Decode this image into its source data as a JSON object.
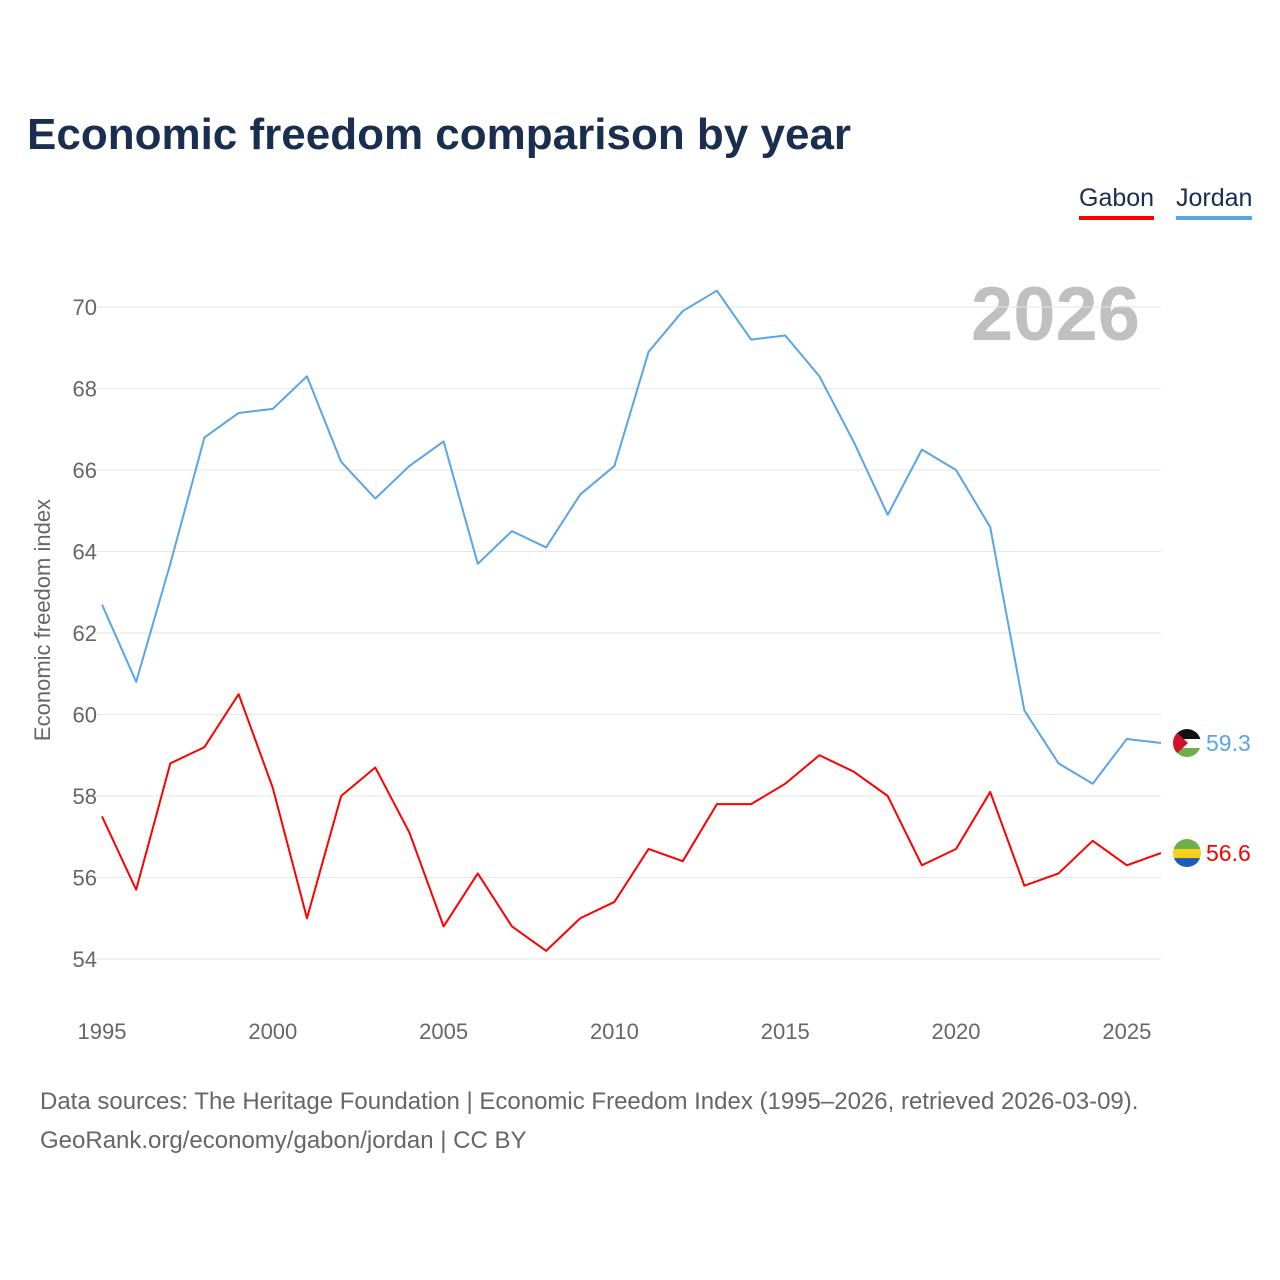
{
  "chart_data": {
    "type": "line",
    "title": "Economic freedom comparison by year",
    "xlabel": "",
    "ylabel": "Economic freedom index",
    "ylim": [
      54,
      70
    ],
    "xlim": [
      1995,
      2026
    ],
    "yticks": [
      54,
      56,
      58,
      60,
      62,
      64,
      66,
      68,
      70
    ],
    "xticks": [
      1995,
      2000,
      2005,
      2010,
      2015,
      2020,
      2025
    ],
    "grid": true,
    "legend_position": "top-right",
    "watermark_year": "2026",
    "x": [
      1995,
      1996,
      1997,
      1998,
      1999,
      2000,
      2001,
      2002,
      2003,
      2004,
      2005,
      2006,
      2007,
      2008,
      2009,
      2010,
      2011,
      2012,
      2013,
      2014,
      2015,
      2016,
      2017,
      2018,
      2019,
      2020,
      2021,
      2022,
      2023,
      2024,
      2025,
      2026
    ],
    "series": [
      {
        "name": "Gabon",
        "color": "#ff0000",
        "end_label": "56.6",
        "values": [
          57.5,
          55.7,
          58.8,
          59.2,
          60.5,
          58.2,
          55.0,
          58.0,
          58.7,
          57.1,
          54.8,
          56.1,
          54.8,
          54.2,
          55.0,
          55.4,
          56.7,
          56.4,
          57.8,
          57.8,
          58.3,
          59.0,
          58.6,
          58.0,
          56.3,
          56.7,
          58.1,
          55.8,
          56.1,
          56.9,
          56.3,
          56.6
        ]
      },
      {
        "name": "Jordan",
        "color": "#5aa5e6",
        "end_label": "59.3",
        "values": [
          62.7,
          60.8,
          63.7,
          66.8,
          67.4,
          67.5,
          68.3,
          66.2,
          65.3,
          66.1,
          66.7,
          63.7,
          64.5,
          64.1,
          65.4,
          66.1,
          68.9,
          69.9,
          70.4,
          69.2,
          69.3,
          68.3,
          66.7,
          64.9,
          66.5,
          66.0,
          64.6,
          60.1,
          58.8,
          58.3,
          59.4,
          59.3
        ]
      }
    ]
  },
  "footer": {
    "line1": "Data sources: The Heritage Foundation | Economic Freedom Index (1995–2026, retrieved 2026-03-09).",
    "line2": "GeoRank.org/economy/gabon/jordan | CC BY"
  }
}
